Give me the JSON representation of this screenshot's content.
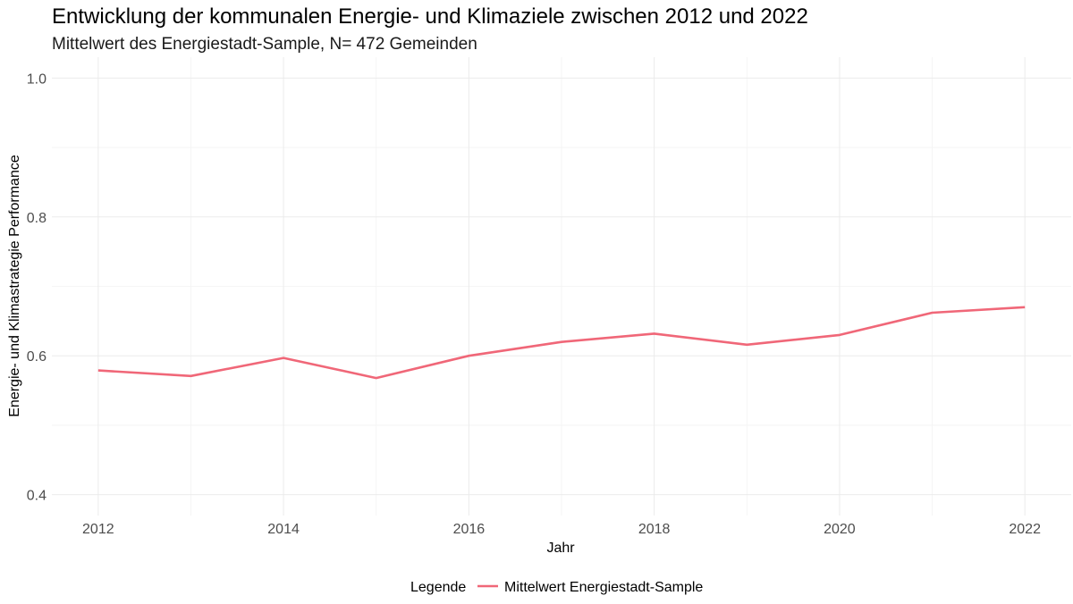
{
  "chart_data": {
    "type": "line",
    "title": "Entwicklung der kommunalen Energie- und Klimaziele zwischen 2012 und 2022",
    "subtitle": "Mittelwert des Energiestadt-Sample, N= 472 Gemeinden",
    "xlabel": "Jahr",
    "ylabel": "Energie- und Klimastrategie Performance",
    "x": [
      2012,
      2013,
      2014,
      2015,
      2016,
      2017,
      2018,
      2019,
      2020,
      2021,
      2022
    ],
    "xlim": [
      2011.5,
      2022.5
    ],
    "ylim": [
      0.37,
      1.03
    ],
    "x_ticks": [
      2012,
      2014,
      2016,
      2018,
      2020,
      2022
    ],
    "x_tick_labels": [
      "2012",
      "2014",
      "2016",
      "2018",
      "2020",
      "2022"
    ],
    "y_ticks": [
      0.4,
      0.6,
      0.8,
      1.0
    ],
    "y_tick_labels": [
      "0.4",
      "0.6",
      "0.8",
      "1.0"
    ],
    "grid": true,
    "series": [
      {
        "name": "Mittelwert Energiestadt-Sample",
        "color": "#f06778",
        "values": [
          0.579,
          0.571,
          0.597,
          0.568,
          0.6,
          0.62,
          0.632,
          0.616,
          0.63,
          0.662,
          0.67
        ]
      }
    ],
    "legend": {
      "title": "Legende",
      "position": "bottom"
    }
  }
}
